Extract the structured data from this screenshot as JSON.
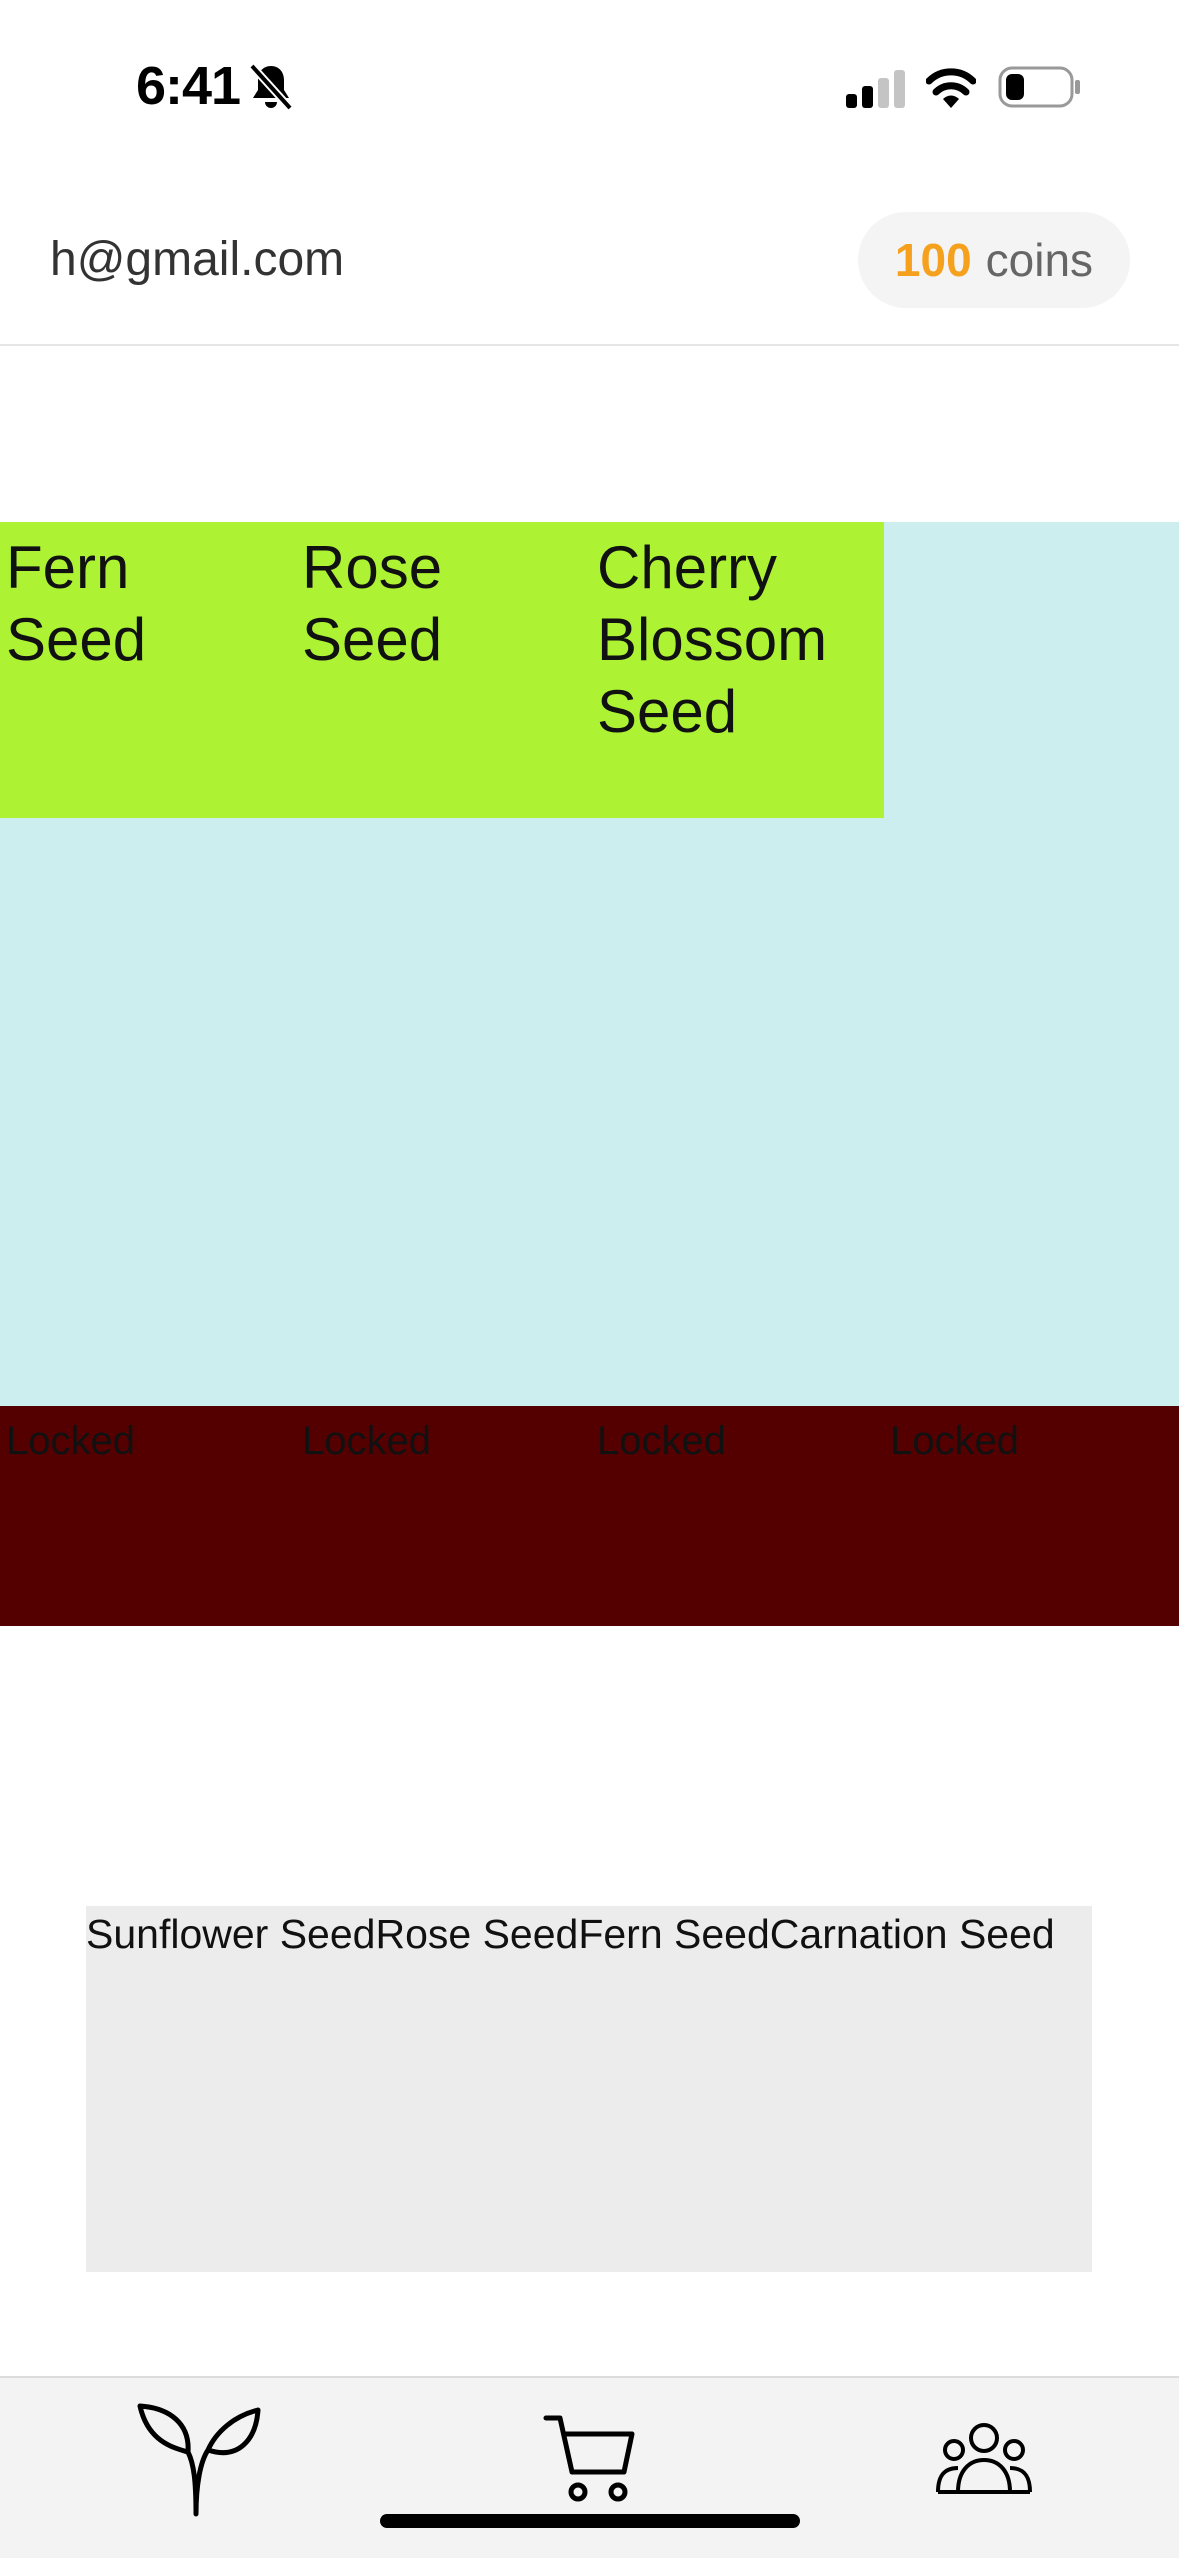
{
  "status_bar": {
    "time": "6:41"
  },
  "header": {
    "email": "h@gmail.com",
    "coins": {
      "count": "100",
      "label": "coins"
    }
  },
  "garden": {
    "seeds": [
      "Fern Seed",
      "Rose Seed",
      "Cherry Blossom Seed"
    ],
    "locked": [
      "Locked",
      "Locked",
      "Locked",
      "Locked"
    ]
  },
  "inventory": {
    "items": [
      "Sunflower Seed",
      "Rose Seed",
      "Fern Seed",
      "Carnation Seed"
    ]
  },
  "tabs": [
    {
      "icon": "sprout-icon"
    },
    {
      "icon": "cart-icon"
    },
    {
      "icon": "users-icon"
    }
  ],
  "colors": {
    "accent_coins": "#f5a11d",
    "seed_row": "#adf333",
    "garden_bg": "#cdeeee",
    "locked_row": "#550000",
    "inventory_bg": "#ececec"
  }
}
